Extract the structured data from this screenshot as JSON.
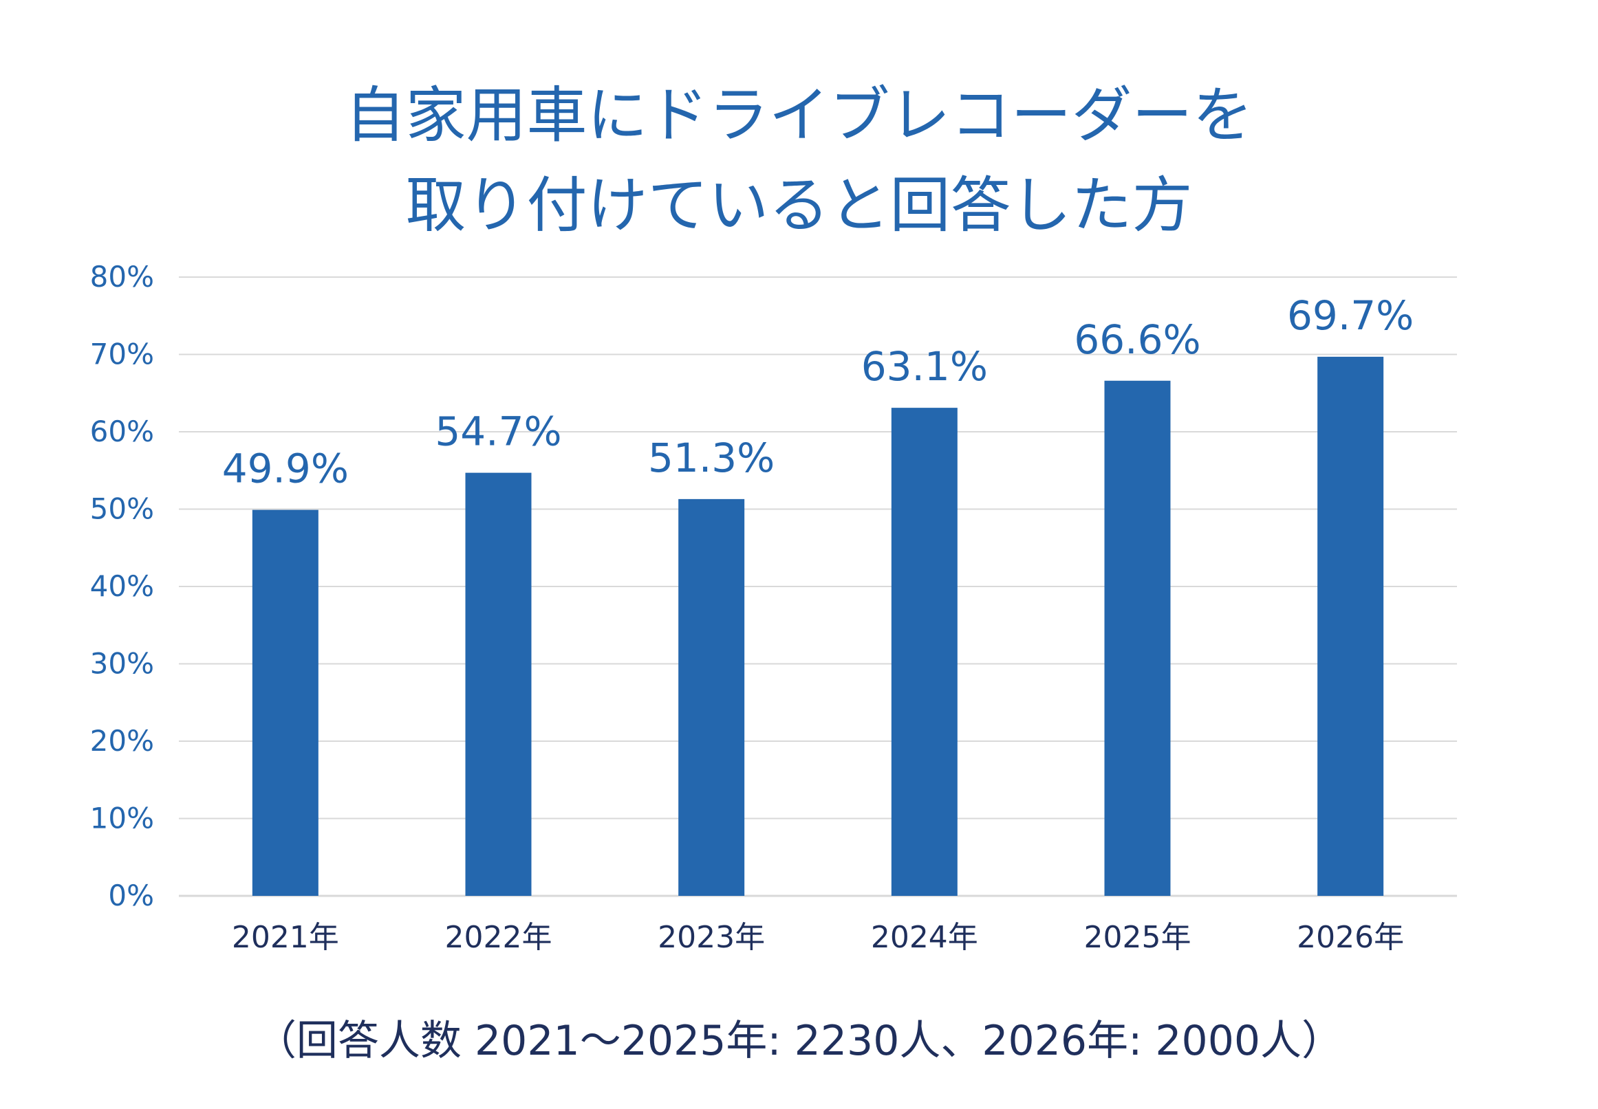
{
  "title": {
    "line1": "自家用車にドライブレコーダーを",
    "line2": "取り付けていると回答した方"
  },
  "footnote": "（回答人数  2021～2025年: 2230人、2026年: 2000人）",
  "colors": {
    "bar": "#2467ae",
    "title": "#2466ae",
    "y_tick": "#2466ae",
    "x_tick": "#1f2f5c",
    "data_label": "#2466ae",
    "grid": "#d9d9d9"
  },
  "chart_data": {
    "type": "bar",
    "categories": [
      "2021年",
      "2022年",
      "2023年",
      "2024年",
      "2025年",
      "2026年"
    ],
    "values": [
      49.9,
      54.7,
      51.3,
      63.1,
      66.6,
      69.7
    ],
    "data_labels": [
      "49.9%",
      "54.7%",
      "51.3%",
      "63.1%",
      "66.6%",
      "69.7%"
    ],
    "y_ticks": [
      "0%",
      "10%",
      "20%",
      "30%",
      "40%",
      "50%",
      "60%",
      "70%",
      "80%"
    ],
    "ylim": [
      0,
      80
    ],
    "grid": true,
    "legend": "none"
  }
}
